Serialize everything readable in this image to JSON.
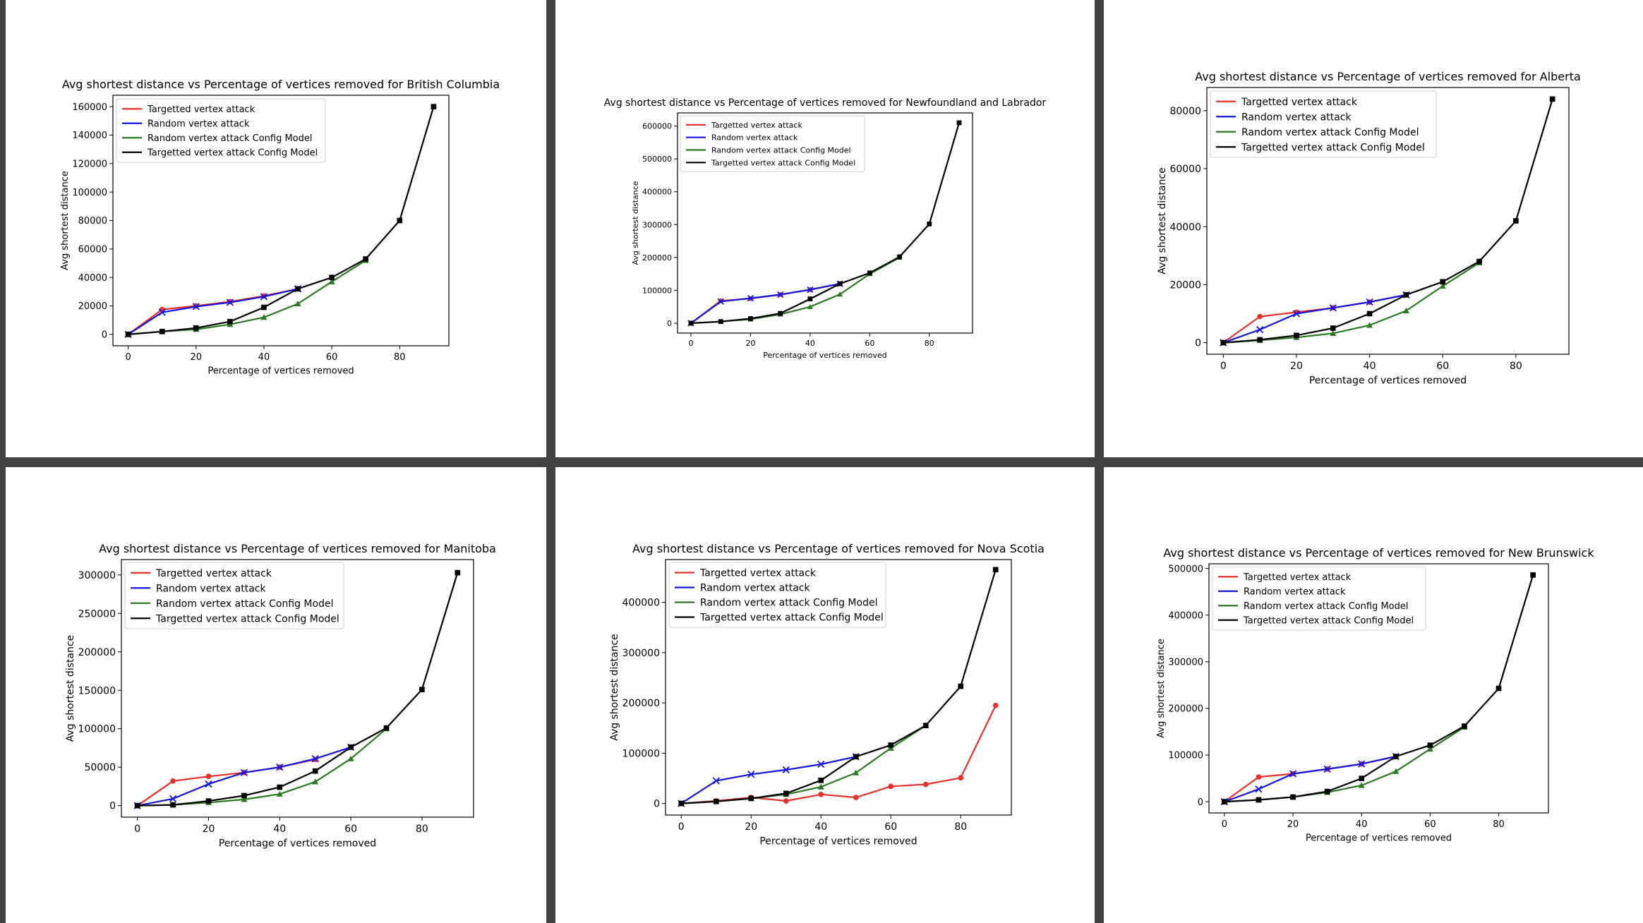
{
  "chart_data": [
    {
      "type": "line",
      "title": "Avg shortest distance vs Percentage of vertices removed for British Columbia",
      "xlabel": "Percentage of vertices removed",
      "ylabel": "Avg shortest distance",
      "xlim": [
        -4.5,
        94.5
      ],
      "ylim": [
        -8000,
        168000
      ],
      "xticks": [
        0,
        20,
        40,
        60,
        80
      ],
      "yticks": [
        0,
        20000,
        40000,
        60000,
        80000,
        100000,
        120000,
        140000,
        160000
      ],
      "legend": [
        "Targetted vertex attack",
        "Random vertex attack",
        "Random vertex attack Config Model",
        "Targetted vertex attack Config Model"
      ],
      "legend_position": "upper-left",
      "series": [
        {
          "name": "Targetted vertex attack",
          "x": [
            0,
            10,
            20,
            30,
            40,
            50
          ],
          "values": [
            0,
            17500,
            20000,
            23000,
            27000,
            32000
          ]
        },
        {
          "name": "Random vertex attack",
          "x": [
            0,
            10,
            20,
            30,
            40,
            50
          ],
          "values": [
            0,
            15500,
            19500,
            22500,
            26500,
            32000
          ]
        },
        {
          "name": "Random vertex attack Config Model",
          "x": [
            0,
            10,
            20,
            30,
            40,
            50,
            60,
            70
          ],
          "values": [
            0,
            2000,
            3500,
            7000,
            12000,
            21500,
            37000,
            52000
          ]
        },
        {
          "name": "Targetted vertex attack Config Model",
          "x": [
            0,
            10,
            20,
            30,
            40,
            50,
            60,
            70,
            80,
            90
          ],
          "values": [
            0,
            2000,
            4500,
            9000,
            19000,
            32000,
            40000,
            53000,
            80000,
            160000
          ]
        }
      ]
    },
    {
      "type": "line",
      "title": "Avg shortest distance vs Percentage of vertices removed for Newfoundland and Labrador",
      "xlabel": "Percentage of vertices removed",
      "ylabel": "Avg shortest distance",
      "xlim": [
        -4.5,
        94.5
      ],
      "ylim": [
        -30000,
        640000
      ],
      "xticks": [
        0,
        20,
        40,
        60,
        80
      ],
      "yticks": [
        0,
        100000,
        200000,
        300000,
        400000,
        500000,
        600000
      ],
      "legend": [
        "Targetted vertex attack",
        "Random vertex attack",
        "Random vertex attack Config Model",
        "Targetted vertex attack Config Model"
      ],
      "legend_position": "upper-left",
      "series": [
        {
          "name": "Targetted vertex attack",
          "x": [
            0,
            10,
            20,
            30,
            40,
            50
          ],
          "values": [
            0,
            68000,
            75000,
            87000,
            102000,
            120000
          ]
        },
        {
          "name": "Random vertex attack",
          "x": [
            0,
            10,
            20,
            30,
            40,
            50
          ],
          "values": [
            0,
            66000,
            76000,
            87000,
            102000,
            120000
          ]
        },
        {
          "name": "Random vertex attack Config Model",
          "x": [
            0,
            10,
            20,
            30,
            40,
            50,
            60,
            70
          ],
          "values": [
            0,
            5000,
            12000,
            27000,
            50000,
            88000,
            150000,
            200000
          ]
        },
        {
          "name": "Targetted vertex attack Config Model",
          "x": [
            0,
            10,
            20,
            30,
            40,
            50,
            60,
            70,
            80,
            90
          ],
          "values": [
            0,
            5000,
            14000,
            30000,
            74000,
            120000,
            153000,
            202000,
            302000,
            610000
          ]
        }
      ]
    },
    {
      "type": "line",
      "title": "Avg shortest distance vs Percentage of vertices removed for Alberta",
      "xlabel": "Percentage of vertices removed",
      "ylabel": "Avg shortest distance",
      "xlim": [
        -4.5,
        94.5
      ],
      "ylim": [
        -4000,
        88000
      ],
      "xticks": [
        0,
        20,
        40,
        60,
        80
      ],
      "yticks": [
        0,
        20000,
        40000,
        60000,
        80000
      ],
      "legend": [
        "Targetted vertex attack",
        "Random vertex attack",
        "Random vertex attack Config Model",
        "Targetted vertex attack Config Model"
      ],
      "legend_position": "upper-left",
      "series": [
        {
          "name": "Targetted vertex attack",
          "x": [
            0,
            10,
            20,
            30,
            40,
            50
          ],
          "values": [
            0,
            9000,
            10500,
            12000,
            14000,
            16500
          ]
        },
        {
          "name": "Random vertex attack",
          "x": [
            0,
            10,
            20,
            30,
            40,
            50
          ],
          "values": [
            0,
            4500,
            10000,
            12000,
            14000,
            16500
          ]
        },
        {
          "name": "Random vertex attack Config Model",
          "x": [
            0,
            10,
            20,
            30,
            40,
            50,
            60,
            70
          ],
          "values": [
            0,
            800,
            1800,
            3200,
            6000,
            11000,
            19500,
            27500
          ]
        },
        {
          "name": "Targetted vertex attack Config Model",
          "x": [
            0,
            10,
            20,
            30,
            40,
            50,
            60,
            70,
            80,
            90
          ],
          "values": [
            0,
            1000,
            2500,
            5000,
            10000,
            16500,
            21000,
            28000,
            42000,
            84000
          ]
        }
      ]
    },
    {
      "type": "line",
      "title": "Avg shortest distance vs Percentage of vertices removed for Manitoba",
      "xlabel": "Percentage of vertices removed",
      "ylabel": "Avg shortest distance",
      "xlim": [
        -4.5,
        94.5
      ],
      "ylim": [
        -15000,
        320000
      ],
      "xticks": [
        0,
        20,
        40,
        60,
        80
      ],
      "yticks": [
        0,
        50000,
        100000,
        150000,
        200000,
        250000,
        300000
      ],
      "legend": [
        "Targetted vertex attack",
        "Random vertex attack",
        "Random vertex attack Config Model",
        "Targetted vertex attack Config Model"
      ],
      "legend_position": "upper-left",
      "series": [
        {
          "name": "Targetted vertex attack",
          "x": [
            0,
            10,
            20,
            30,
            40,
            50
          ],
          "values": [
            0,
            32000,
            38000,
            43000,
            50000,
            60000
          ]
        },
        {
          "name": "Random vertex attack",
          "x": [
            0,
            10,
            20,
            30,
            40,
            50,
            60
          ],
          "values": [
            0,
            9000,
            28000,
            43000,
            50000,
            61000,
            76000
          ]
        },
        {
          "name": "Random vertex attack Config Model",
          "x": [
            0,
            10,
            20,
            30,
            40,
            50,
            60,
            70
          ],
          "values": [
            0,
            1000,
            4000,
            8000,
            15000,
            31000,
            61000,
            100000
          ]
        },
        {
          "name": "Targetted vertex attack Config Model",
          "x": [
            0,
            10,
            20,
            30,
            40,
            50,
            60,
            70,
            80,
            90
          ],
          "values": [
            0,
            1000,
            6000,
            13000,
            24000,
            45000,
            76000,
            101000,
            151000,
            303000
          ]
        }
      ]
    },
    {
      "type": "line",
      "title": "Avg shortest distance vs Percentage of vertices removed for Nova Scotia",
      "xlabel": "Percentage of vertices removed",
      "ylabel": "Avg shortest distance",
      "xlim": [
        -4.5,
        94.5
      ],
      "ylim": [
        -23000,
        485000
      ],
      "xticks": [
        0,
        20,
        40,
        60,
        80
      ],
      "yticks": [
        0,
        100000,
        200000,
        300000,
        400000
      ],
      "legend": [
        "Targetted vertex attack",
        "Random vertex attack",
        "Random vertex attack Config Model",
        "Targetted vertex attack Config Model"
      ],
      "legend_position": "upper-left",
      "series": [
        {
          "name": "Targetted vertex attack",
          "x": [
            0,
            10,
            20,
            30,
            40,
            50,
            60,
            70,
            80,
            90
          ],
          "values": [
            0,
            5000,
            12000,
            5000,
            18000,
            12000,
            34000,
            38000,
            51000,
            195000
          ]
        },
        {
          "name": "Random vertex attack",
          "x": [
            0,
            10,
            20,
            30,
            40,
            50
          ],
          "values": [
            0,
            45000,
            58000,
            67000,
            78000,
            93000
          ]
        },
        {
          "name": "Random vertex attack Config Model",
          "x": [
            0,
            10,
            20,
            30,
            40,
            50,
            60,
            70
          ],
          "values": [
            0,
            4000,
            10000,
            18000,
            33000,
            61000,
            110000,
            155000
          ]
        },
        {
          "name": "Targetted vertex attack Config Model",
          "x": [
            0,
            10,
            20,
            30,
            40,
            50,
            60,
            70,
            80,
            90
          ],
          "values": [
            0,
            4000,
            10000,
            20000,
            46000,
            93000,
            116000,
            155000,
            233000,
            465000
          ]
        }
      ]
    },
    {
      "type": "line",
      "title": "Avg shortest distance vs Percentage of vertices removed for New Brunswick",
      "xlabel": "Percentage of vertices removed",
      "ylabel": "Avg shortest distance",
      "xlim": [
        -4.5,
        94.5
      ],
      "ylim": [
        -24000,
        510000
      ],
      "xticks": [
        0,
        20,
        40,
        60,
        80
      ],
      "yticks": [
        0,
        100000,
        200000,
        300000,
        400000,
        500000
      ],
      "legend": [
        "Targetted vertex attack",
        "Random vertex attack",
        "Random vertex attack Config Model",
        "Targetted vertex attack Config Model"
      ],
      "legend_position": "upper-left",
      "series": [
        {
          "name": "Targetted vertex attack",
          "x": [
            0,
            10,
            20,
            30,
            40,
            50
          ],
          "values": [
            0,
            53000,
            60000,
            70000,
            81000,
            97000
          ]
        },
        {
          "name": "Random vertex attack",
          "x": [
            0,
            10,
            20,
            30,
            40,
            50
          ],
          "values": [
            0,
            27000,
            60000,
            70000,
            81000,
            97000
          ]
        },
        {
          "name": "Random vertex attack Config Model",
          "x": [
            0,
            10,
            20,
            30,
            40,
            50,
            60,
            70
          ],
          "values": [
            0,
            4000,
            10000,
            20000,
            35000,
            65000,
            113000,
            160000
          ]
        },
        {
          "name": "Targetted vertex attack Config Model",
          "x": [
            0,
            10,
            20,
            30,
            40,
            50,
            60,
            70,
            80,
            90
          ],
          "values": [
            0,
            4000,
            10000,
            22000,
            50000,
            97000,
            121000,
            162000,
            243000,
            486000
          ]
        }
      ]
    }
  ],
  "series_styles": [
    {
      "color": "#e8312a",
      "marker": "circle"
    },
    {
      "color": "#1515e0",
      "marker": "x"
    },
    {
      "color": "#2a7a20",
      "marker": "triangle"
    },
    {
      "color": "#000000",
      "marker": "square"
    }
  ]
}
